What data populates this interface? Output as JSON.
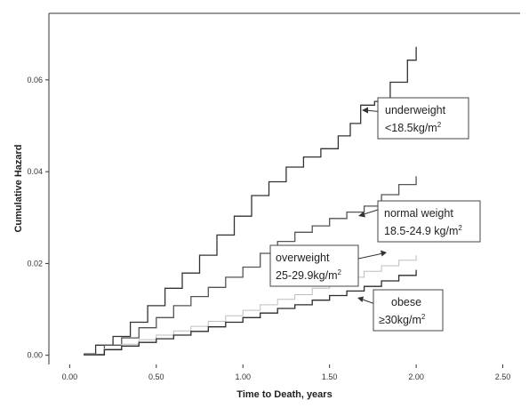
{
  "chart_data": {
    "type": "line",
    "xlabel": "Time to Death, years",
    "ylabel": "Cumulative Hazard",
    "xlim": [
      -0.12,
      2.6
    ],
    "ylim": [
      -0.002,
      0.0745
    ],
    "x_ticks": [
      0.0,
      0.5,
      1.0,
      1.5,
      2.0,
      2.5
    ],
    "x_tick_labels": [
      "0.00",
      "0.50",
      "1.00",
      "1.50",
      "2.00",
      "2.50"
    ],
    "y_ticks": [
      0.0,
      0.02,
      0.04,
      0.06
    ],
    "y_tick_labels": [
      "0.00",
      "0.02",
      "0.04",
      "0.06"
    ],
    "grid": false,
    "series": [
      {
        "name": "underweight <18.5kg/m2",
        "color": "#333333",
        "points": [
          [
            0.08,
            0.0003
          ],
          [
            0.15,
            0.0022
          ],
          [
            0.25,
            0.0041
          ],
          [
            0.35,
            0.0072
          ],
          [
            0.45,
            0.0108
          ],
          [
            0.55,
            0.0146
          ],
          [
            0.65,
            0.0179
          ],
          [
            0.75,
            0.0218
          ],
          [
            0.85,
            0.0262
          ],
          [
            0.95,
            0.0303
          ],
          [
            1.05,
            0.0348
          ],
          [
            1.15,
            0.0378
          ],
          [
            1.25,
            0.041
          ],
          [
            1.35,
            0.0432
          ],
          [
            1.45,
            0.045
          ],
          [
            1.55,
            0.0478
          ],
          [
            1.62,
            0.0505
          ],
          [
            1.68,
            0.0545
          ],
          [
            1.76,
            0.0553
          ],
          [
            1.85,
            0.0595
          ],
          [
            1.95,
            0.0643
          ],
          [
            2.0,
            0.0672
          ]
        ]
      },
      {
        "name": "normal weight 18.5-24.9 kg/m2",
        "color": "#555555",
        "points": [
          [
            0.08,
            0.0002
          ],
          [
            0.2,
            0.0022
          ],
          [
            0.3,
            0.0038
          ],
          [
            0.4,
            0.006
          ],
          [
            0.5,
            0.0082
          ],
          [
            0.6,
            0.0108
          ],
          [
            0.7,
            0.0128
          ],
          [
            0.8,
            0.0148
          ],
          [
            0.9,
            0.017
          ],
          [
            1.0,
            0.0192
          ],
          [
            1.1,
            0.0222
          ],
          [
            1.2,
            0.0248
          ],
          [
            1.3,
            0.0268
          ],
          [
            1.4,
            0.0282
          ],
          [
            1.5,
            0.0298
          ],
          [
            1.6,
            0.0312
          ],
          [
            1.7,
            0.0325
          ],
          [
            1.8,
            0.035
          ],
          [
            1.9,
            0.0372
          ],
          [
            2.0,
            0.039
          ]
        ]
      },
      {
        "name": "overweight 25-29.9kg/m2",
        "color": "#bdbdbd",
        "points": [
          [
            0.08,
            0.0002
          ],
          [
            0.2,
            0.0014
          ],
          [
            0.3,
            0.0024
          ],
          [
            0.4,
            0.0034
          ],
          [
            0.5,
            0.0044
          ],
          [
            0.6,
            0.0053
          ],
          [
            0.7,
            0.0063
          ],
          [
            0.8,
            0.0074
          ],
          [
            0.9,
            0.0086
          ],
          [
            1.0,
            0.0098
          ],
          [
            1.1,
            0.011
          ],
          [
            1.2,
            0.0122
          ],
          [
            1.3,
            0.0132
          ],
          [
            1.4,
            0.0146
          ],
          [
            1.5,
            0.0157
          ],
          [
            1.6,
            0.017
          ],
          [
            1.7,
            0.0183
          ],
          [
            1.8,
            0.0195
          ],
          [
            1.9,
            0.0207
          ],
          [
            2.0,
            0.0218
          ]
        ]
      },
      {
        "name": "obese ≥30kg/m2",
        "color": "#2b2b2b",
        "points": [
          [
            0.08,
            0.0001
          ],
          [
            0.2,
            0.0012
          ],
          [
            0.3,
            0.002
          ],
          [
            0.4,
            0.0028
          ],
          [
            0.5,
            0.0036
          ],
          [
            0.6,
            0.0044
          ],
          [
            0.7,
            0.0052
          ],
          [
            0.8,
            0.0062
          ],
          [
            0.9,
            0.0072
          ],
          [
            1.0,
            0.0082
          ],
          [
            1.1,
            0.0092
          ],
          [
            1.2,
            0.0102
          ],
          [
            1.3,
            0.011
          ],
          [
            1.4,
            0.012
          ],
          [
            1.5,
            0.013
          ],
          [
            1.6,
            0.014
          ],
          [
            1.7,
            0.015
          ],
          [
            1.8,
            0.0162
          ],
          [
            1.9,
            0.0174
          ],
          [
            2.0,
            0.0186
          ]
        ]
      }
    ],
    "annotations": [
      {
        "lines": [
          "underweight",
          "<18.5kg/m",
          "2"
        ]
      },
      {
        "lines": [
          "normal weight",
          "18.5-24.9 kg/m",
          "2"
        ]
      },
      {
        "lines": [
          "overweight",
          "25-29.9kg/m",
          "2"
        ]
      },
      {
        "lines": [
          "obese",
          "≥30kg/m",
          "2"
        ]
      }
    ]
  }
}
